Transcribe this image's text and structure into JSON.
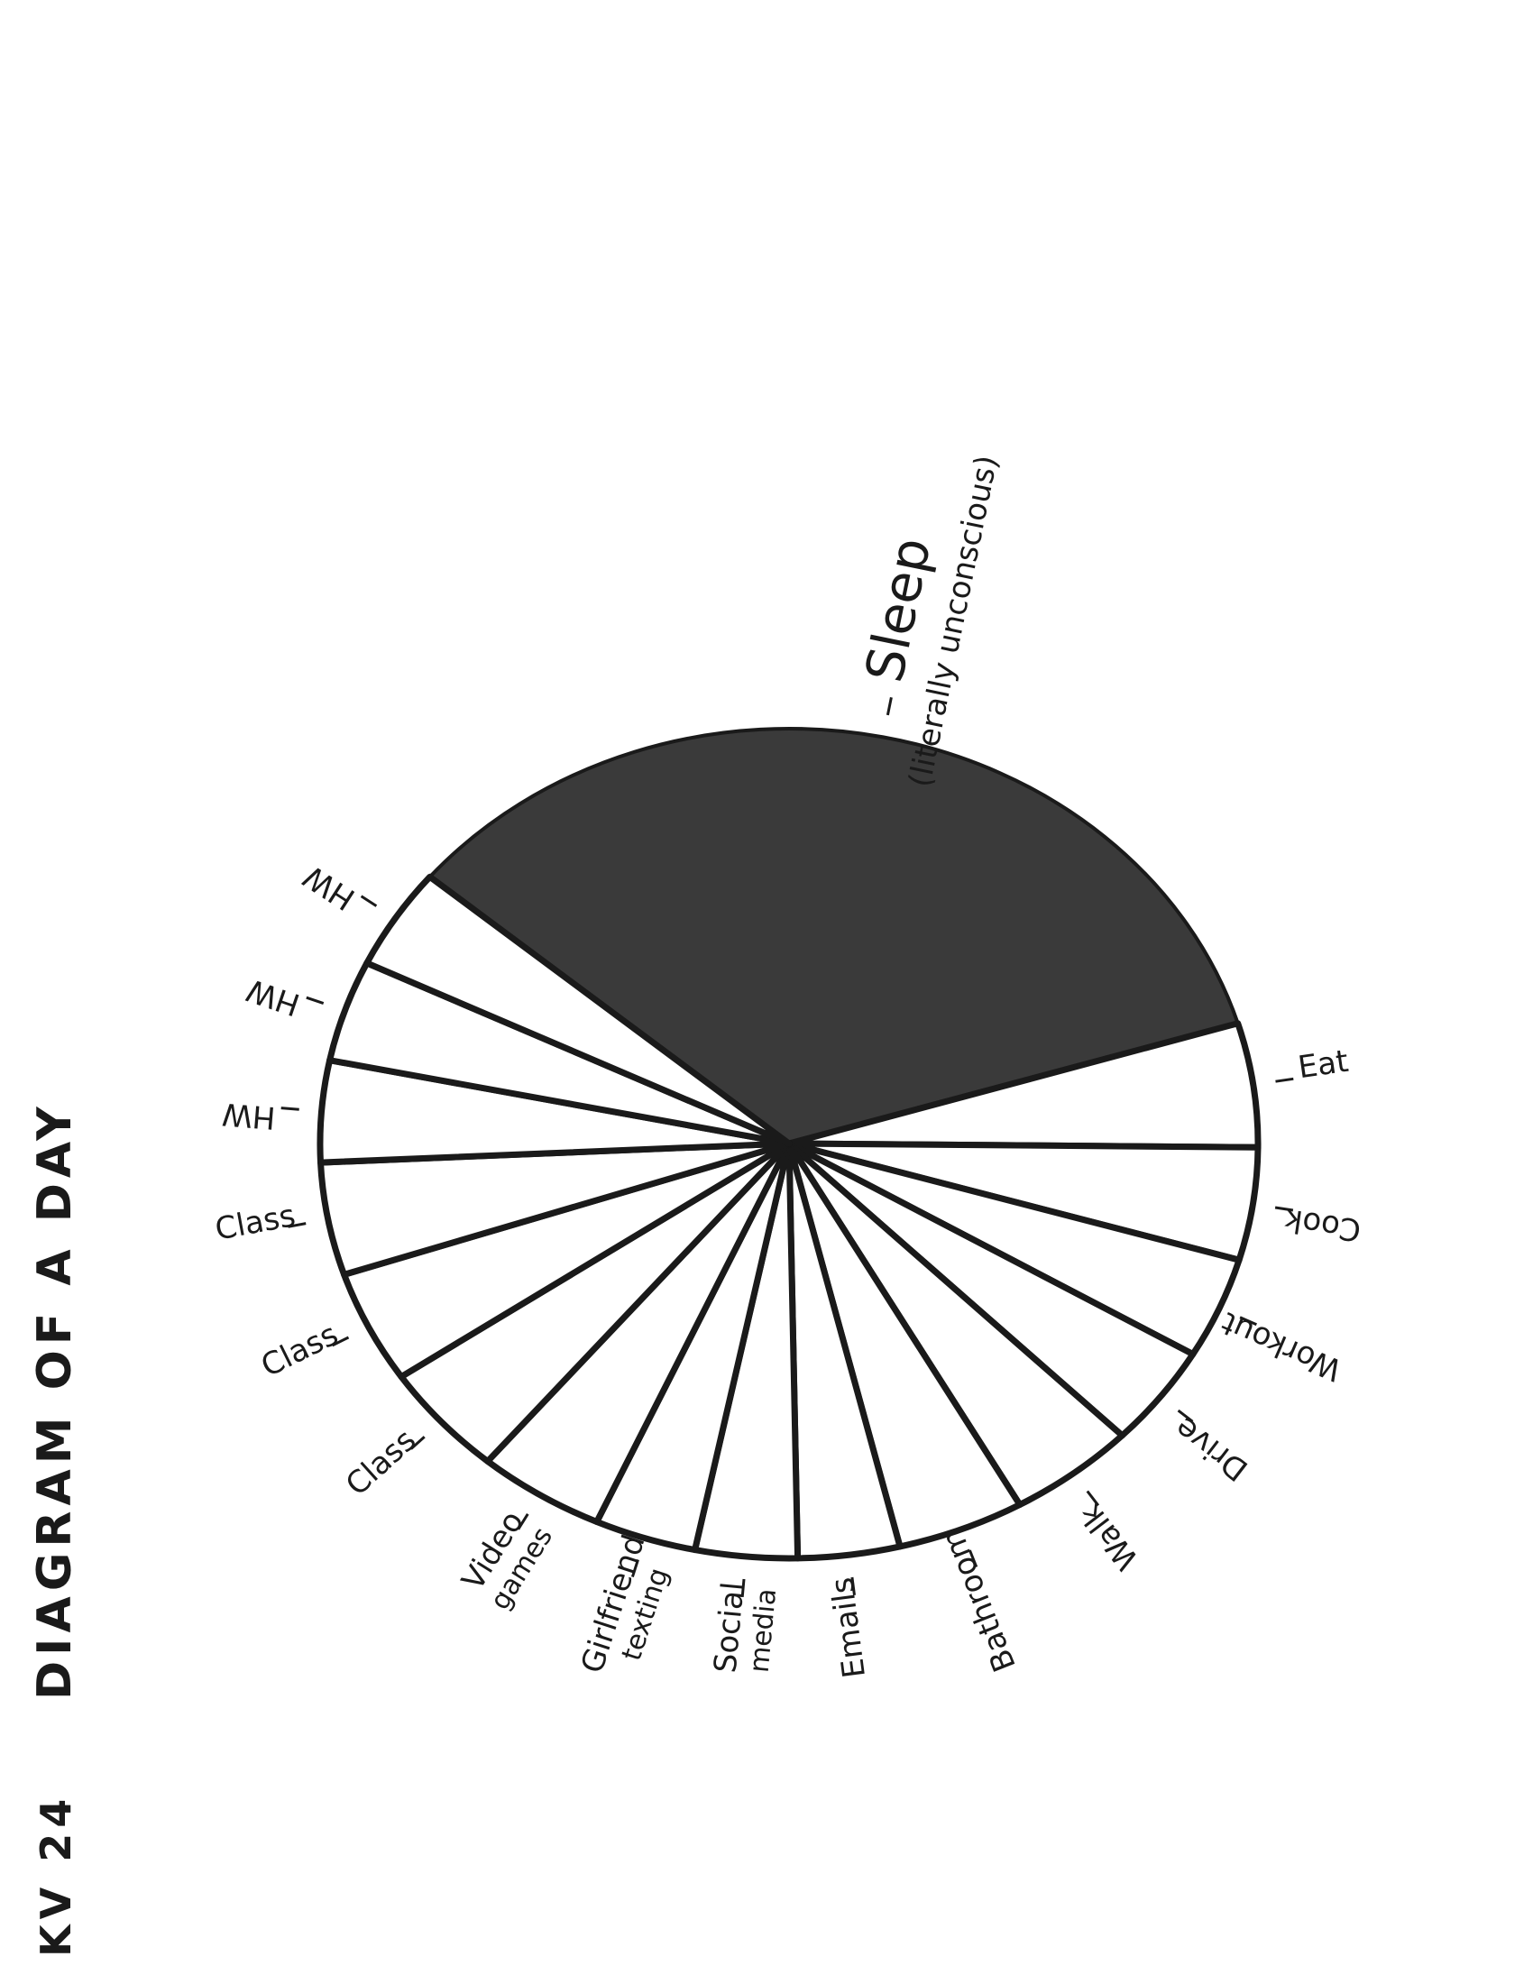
{
  "page": {
    "code": "KV 24",
    "title": "DIAGRAM OF A DAY"
  },
  "chart_data": {
    "type": "pie",
    "categories": [
      "Sleep (literally unconscious)",
      "Eat",
      "Cook",
      "Workout",
      "Drive",
      "Walk",
      "Bathroom",
      "Emails",
      "Social media",
      "Girlfriend texting",
      "Video games",
      "Class",
      "Class",
      "Class",
      "HW",
      "HW",
      "HW"
    ],
    "values": [
      7.8,
      1.1,
      1.0,
      0.9,
      0.9,
      1.0,
      1.0,
      0.8,
      0.8,
      0.8,
      1.0,
      1.0,
      1.0,
      1.0,
      0.9,
      0.9,
      0.9
    ],
    "colors": {
      "filled": "#3a3a3a",
      "empty": "#ffffff",
      "stroke": "#1a1a1a"
    },
    "labels": [
      {
        "text": "Sleep",
        "sub": "(literally unconscious)"
      },
      {
        "text": "Eat"
      },
      {
        "text": "Cook"
      },
      {
        "text": "Workout"
      },
      {
        "text": "Drive"
      },
      {
        "text": "Walk"
      },
      {
        "text": "Bathroom"
      },
      {
        "text": "Emails"
      },
      {
        "text": "Social",
        "sub": "media"
      },
      {
        "text": "Girlfriend",
        "sub": "texting"
      },
      {
        "text": "Video",
        "sub": "games"
      },
      {
        "text": "Class"
      },
      {
        "text": "Class"
      },
      {
        "text": "Class"
      },
      {
        "text": "HW"
      },
      {
        "text": "HW"
      },
      {
        "text": "HW"
      }
    ]
  }
}
